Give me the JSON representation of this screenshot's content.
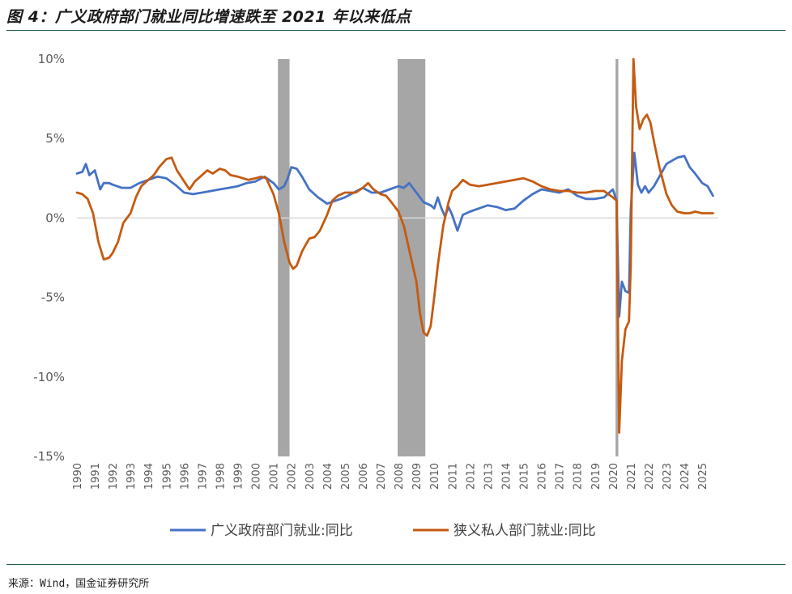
{
  "header": {
    "title": "图 4：广义政府部门就业同比增速跌至 2021 年以来低点"
  },
  "footer": {
    "source": "来源：Wind，国金证券研究所"
  },
  "chart_data": {
    "type": "line",
    "title": "图 4：广义政府部门就业同比增速跌至 2021 年以来低点",
    "xlabel": "",
    "ylabel": "",
    "ylim": [
      -15,
      10
    ],
    "xlim": [
      1990,
      2025.9
    ],
    "y_ticks": [
      "10%",
      "5%",
      "0%",
      "-5%",
      "-10%",
      "-15%"
    ],
    "y_tick_values": [
      10,
      5,
      0,
      -5,
      -10,
      -15
    ],
    "x_ticks": [
      "1990",
      "1991",
      "1992",
      "1993",
      "1994",
      "1995",
      "1996",
      "1997",
      "1998",
      "1999",
      "2000",
      "2001",
      "2002",
      "2003",
      "2004",
      "2005",
      "2006",
      "2007",
      "2008",
      "2009",
      "2010",
      "2011",
      "2012",
      "2013",
      "2014",
      "2015",
      "2016",
      "2017",
      "2018",
      "2019",
      "2020",
      "2021",
      "2022",
      "2023",
      "2024",
      "2025"
    ],
    "x_tick_values": [
      1990,
      1991,
      1992,
      1993,
      1994,
      1995,
      1996,
      1997,
      1998,
      1999,
      2000,
      2001,
      2002,
      2003,
      2004,
      2005,
      2006,
      2007,
      2008,
      2009,
      2010,
      2011,
      2012,
      2013,
      2014,
      2015,
      2016,
      2017,
      2018,
      2019,
      2020,
      2021,
      2022,
      2023,
      2024,
      2025
    ],
    "recession_bands": [
      [
        2001.25,
        2001.9
      ],
      [
        2007.95,
        2009.5
      ],
      [
        2020.15,
        2020.3
      ]
    ],
    "recession_color": "#a6a6a6",
    "grid": false,
    "legend_position": "bottom",
    "series": [
      {
        "name": "广义政府部门就业:同比",
        "color": "#4472c4",
        "x": [
          1990,
          1990.3,
          1990.5,
          1990.7,
          1991,
          1991.3,
          1991.5,
          1991.8,
          1992,
          1992.5,
          1993,
          1993.5,
          1994,
          1994.5,
          1995,
          1995.5,
          1996,
          1996.5,
          1997,
          1997.5,
          1998,
          1998.5,
          1999,
          1999.5,
          2000,
          2000.5,
          2001,
          2001.3,
          2001.6,
          2001.8,
          2002,
          2002.3,
          2002.6,
          2003,
          2003.5,
          2004,
          2004.5,
          2005,
          2005.5,
          2006,
          2006.5,
          2007,
          2007.5,
          2008,
          2008.3,
          2008.6,
          2009,
          2009.4,
          2009.8,
          2010,
          2010.2,
          2010.4,
          2010.6,
          2010.8,
          2011,
          2011.3,
          2011.6,
          2012,
          2012.5,
          2013,
          2013.5,
          2014,
          2014.5,
          2015,
          2015.5,
          2016,
          2016.5,
          2017,
          2017.5,
          2018,
          2018.5,
          2019,
          2019.5,
          2020,
          2020.2,
          2020.35,
          2020.5,
          2020.7,
          2020.9,
          2021,
          2021.2,
          2021.4,
          2021.6,
          2021.8,
          2022,
          2022.3,
          2022.6,
          2023,
          2023.3,
          2023.6,
          2024,
          2024.3,
          2024.6,
          2025,
          2025.3,
          2025.6
        ],
        "values": [
          2.8,
          2.9,
          3.4,
          2.7,
          3.0,
          1.8,
          2.2,
          2.2,
          2.1,
          1.9,
          1.9,
          2.2,
          2.4,
          2.6,
          2.5,
          2.1,
          1.6,
          1.5,
          1.6,
          1.7,
          1.8,
          1.9,
          2.0,
          2.2,
          2.3,
          2.6,
          2.2,
          1.8,
          2.0,
          2.5,
          3.2,
          3.1,
          2.6,
          1.8,
          1.3,
          0.9,
          1.1,
          1.3,
          1.6,
          1.9,
          1.6,
          1.6,
          1.8,
          2.0,
          1.9,
          2.2,
          1.6,
          1.0,
          0.8,
          0.6,
          1.3,
          0.6,
          0.1,
          0.7,
          0.2,
          -0.8,
          0.2,
          0.4,
          0.6,
          0.8,
          0.7,
          0.5,
          0.6,
          1.1,
          1.5,
          1.8,
          1.7,
          1.6,
          1.8,
          1.4,
          1.2,
          1.2,
          1.3,
          1.8,
          1.1,
          -6.2,
          -4.0,
          -4.6,
          -4.7,
          0.5,
          4.1,
          2.1,
          1.6,
          2.0,
          1.6,
          2.0,
          2.6,
          3.4,
          3.6,
          3.8,
          3.9,
          3.2,
          2.8,
          2.2,
          2.0,
          1.4
        ]
      },
      {
        "name": "狭义私人部门就业:同比",
        "color": "#c55a11",
        "x": [
          1990,
          1990.3,
          1990.6,
          1990.9,
          1991.2,
          1991.5,
          1991.8,
          1992,
          1992.3,
          1992.6,
          1993,
          1993.3,
          1993.6,
          1994,
          1994.3,
          1994.6,
          1995,
          1995.3,
          1995.6,
          1996,
          1996.3,
          1996.6,
          1997,
          1997.3,
          1997.6,
          1998,
          1998.3,
          1998.6,
          1999,
          1999.3,
          1999.6,
          2000,
          2000.3,
          2000.6,
          2001,
          2001.3,
          2001.6,
          2001.9,
          2002.1,
          2002.3,
          2002.6,
          2003,
          2003.3,
          2003.6,
          2004,
          2004.3,
          2004.6,
          2005,
          2005.3,
          2005.6,
          2006,
          2006.3,
          2006.6,
          2007,
          2007.3,
          2007.6,
          2008,
          2008.3,
          2008.6,
          2009,
          2009.2,
          2009.4,
          2009.6,
          2009.8,
          2010,
          2010.2,
          2010.5,
          2010.8,
          2011,
          2011.3,
          2011.6,
          2012,
          2012.5,
          2013,
          2013.5,
          2014,
          2014.5,
          2015,
          2015.5,
          2016,
          2016.5,
          2017,
          2017.5,
          2018,
          2018.5,
          2019,
          2019.5,
          2020,
          2020.2,
          2020.35,
          2020.5,
          2020.7,
          2020.9,
          2021,
          2021.15,
          2021.3,
          2021.5,
          2021.7,
          2021.9,
          2022.1,
          2022.3,
          2022.6,
          2023,
          2023.3,
          2023.6,
          2024,
          2024.3,
          2024.6,
          2025,
          2025.3,
          2025.6
        ],
        "values": [
          1.6,
          1.5,
          1.2,
          0.3,
          -1.5,
          -2.6,
          -2.5,
          -2.2,
          -1.5,
          -0.3,
          0.3,
          1.3,
          2.0,
          2.4,
          2.7,
          3.2,
          3.7,
          3.8,
          3.0,
          2.3,
          1.8,
          2.3,
          2.7,
          3.0,
          2.8,
          3.1,
          3.0,
          2.7,
          2.6,
          2.5,
          2.4,
          2.5,
          2.6,
          2.5,
          1.5,
          0.3,
          -1.5,
          -2.8,
          -3.2,
          -3.0,
          -2.1,
          -1.3,
          -1.2,
          -0.8,
          0.2,
          1.1,
          1.4,
          1.6,
          1.6,
          1.6,
          1.9,
          2.2,
          1.8,
          1.5,
          1.4,
          1.0,
          0.4,
          -0.5,
          -2.0,
          -4.0,
          -6.0,
          -7.2,
          -7.4,
          -6.8,
          -5.0,
          -3.0,
          -0.5,
          1.0,
          1.7,
          2.0,
          2.4,
          2.1,
          2.0,
          2.1,
          2.2,
          2.3,
          2.4,
          2.5,
          2.3,
          2.0,
          1.8,
          1.7,
          1.7,
          1.6,
          1.6,
          1.7,
          1.7,
          1.3,
          1.1,
          -13.5,
          -9.0,
          -7.0,
          -6.5,
          -3.0,
          10.0,
          7.0,
          5.6,
          6.2,
          6.5,
          6.0,
          4.8,
          3.2,
          1.5,
          0.8,
          0.4,
          0.3,
          0.3,
          0.4,
          0.3,
          0.3,
          0.3
        ]
      }
    ]
  }
}
